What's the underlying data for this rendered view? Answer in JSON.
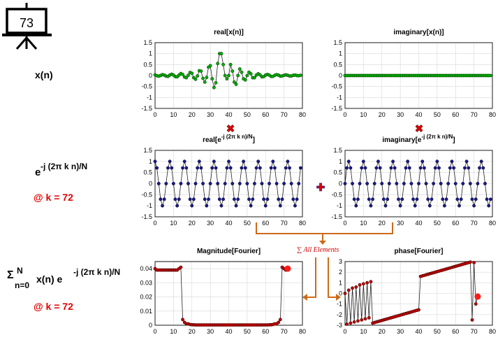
{
  "slide_badge": "73",
  "left_labels": {
    "xn": "x(n)",
    "exp_base": "e",
    "exp_sup": "-j (2π k n)/N",
    "k_label_1": "@ k = 72",
    "sum_sigma": "Σ",
    "sum_sup": "N",
    "sum_sub": "n=0",
    "sum_mid": "x(n) e",
    "sum_exp": "-j (2π k n)/N",
    "k_label_2": "@ k = 72"
  },
  "operators": {
    "multiply_1": "✖",
    "multiply_2": "✖",
    "plus": "✚",
    "sum_text": "∑ All Elements"
  },
  "colors": {
    "green_marker": "#00b000",
    "blue_marker": "#1a1a8c",
    "red_marker": "#c00000",
    "accent_red": "#e00000",
    "arrow_orange": "#cc6a1a",
    "grid": "#d8d8d8"
  },
  "chart_data": [
    {
      "id": "real_x",
      "type": "line",
      "title": "real[x(n)]",
      "marker": "green",
      "x": [
        0,
        1,
        2,
        3,
        4,
        5,
        6,
        7,
        8,
        9,
        10,
        11,
        12,
        13,
        14,
        15,
        16,
        17,
        18,
        19,
        20,
        21,
        22,
        23,
        24,
        25,
        26,
        27,
        28,
        29,
        30,
        31,
        32,
        33,
        34,
        35,
        36,
        37,
        38,
        39,
        40,
        41,
        42,
        43,
        44,
        45,
        46,
        47,
        48,
        49,
        50,
        51,
        52,
        53,
        54,
        55,
        56,
        57,
        58,
        59,
        60,
        61,
        62,
        63,
        64,
        65,
        66,
        67,
        68,
        69,
        70,
        71,
        72,
        73,
        74,
        75,
        76,
        77,
        78,
        79
      ],
      "y": [
        0.03,
        -0.01,
        -0.03,
        0.0,
        0.04,
        0.02,
        -0.03,
        -0.04,
        0.02,
        0.06,
        0.02,
        -0.05,
        -0.06,
        0.02,
        0.09,
        0.05,
        -0.07,
        -0.1,
        0.01,
        0.14,
        0.1,
        -0.1,
        -0.17,
        -0.02,
        0.22,
        0.2,
        -0.13,
        -0.3,
        -0.09,
        0.38,
        0.45,
        -0.15,
        -0.55,
        -0.33,
        0.55,
        1.0,
        1.0,
        0.5,
        0.0,
        -0.15,
        0.0,
        0.5,
        0.2,
        -0.3,
        -0.4,
        0.0,
        0.3,
        0.15,
        -0.15,
        -0.2,
        0.0,
        0.15,
        0.08,
        -0.1,
        -0.1,
        0.02,
        0.08,
        0.03,
        -0.06,
        -0.05,
        0.02,
        0.05,
        0.02,
        -0.04,
        -0.04,
        0.01,
        0.04,
        0.02,
        -0.03,
        -0.02,
        0.01,
        0.03,
        0.01,
        -0.02,
        -0.02,
        0.01,
        0.02,
        0.0,
        -0.01,
        0.01
      ],
      "xlim": [
        0,
        80
      ],
      "ylim": [
        -1.5,
        1.5
      ],
      "xticks": [
        0,
        10,
        20,
        30,
        40,
        50,
        60,
        70,
        80
      ],
      "yticks": [
        -1.5,
        -1,
        -0.5,
        0,
        0.5,
        1,
        1.5
      ]
    },
    {
      "id": "imag_x",
      "type": "line",
      "title": "imaginary[x(n)]",
      "marker": "green",
      "x": [
        0,
        1,
        2,
        3,
        4,
        5,
        6,
        7,
        8,
        9,
        10,
        11,
        12,
        13,
        14,
        15,
        16,
        17,
        18,
        19,
        20,
        21,
        22,
        23,
        24,
        25,
        26,
        27,
        28,
        29,
        30,
        31,
        32,
        33,
        34,
        35,
        36,
        37,
        38,
        39,
        40,
        41,
        42,
        43,
        44,
        45,
        46,
        47,
        48,
        49,
        50,
        51,
        52,
        53,
        54,
        55,
        56,
        57,
        58,
        59,
        60,
        61,
        62,
        63,
        64,
        65,
        66,
        67,
        68,
        69,
        70,
        71,
        72,
        73,
        74,
        75,
        76,
        77,
        78,
        79
      ],
      "y": [
        0,
        0,
        0,
        0,
        0,
        0,
        0,
        0,
        0,
        0,
        0,
        0,
        0,
        0,
        0,
        0,
        0,
        0,
        0,
        0,
        0,
        0,
        0,
        0,
        0,
        0,
        0,
        0,
        0,
        0,
        0,
        0,
        0,
        0,
        0,
        0,
        0,
        0,
        0,
        0,
        0,
        0,
        0,
        0,
        0,
        0,
        0,
        0,
        0,
        0,
        0,
        0,
        0,
        0,
        0,
        0,
        0,
        0,
        0,
        0,
        0,
        0,
        0,
        0,
        0,
        0,
        0,
        0,
        0,
        0,
        0,
        0,
        0,
        0,
        0,
        0,
        0,
        0,
        0,
        0
      ],
      "xlim": [
        0,
        80
      ],
      "ylim": [
        -1.5,
        1.5
      ],
      "xticks": [
        0,
        10,
        20,
        30,
        40,
        50,
        60,
        70,
        80
      ],
      "yticks": [
        -1.5,
        -1,
        -0.5,
        0,
        0.5,
        1,
        1.5
      ]
    },
    {
      "id": "real_exp",
      "type": "line",
      "title_main": "real[e",
      "title_sup": "-j (2π k n)/N",
      "title_end": "]",
      "marker": "blue",
      "x": [
        0,
        1,
        2,
        3,
        4,
        5,
        6,
        7,
        8,
        9,
        10,
        11,
        12,
        13,
        14,
        15,
        16,
        17,
        18,
        19,
        20,
        21,
        22,
        23,
        24,
        25,
        26,
        27,
        28,
        29,
        30,
        31,
        32,
        33,
        34,
        35,
        36,
        37,
        38,
        39,
        40,
        41,
        42,
        43,
        44,
        45,
        46,
        47,
        48,
        49,
        50,
        51,
        52,
        53,
        54,
        55,
        56,
        57,
        58,
        59,
        60,
        61,
        62,
        63,
        64,
        65,
        66,
        67,
        68,
        69,
        70,
        71,
        72,
        73,
        74,
        75,
        76,
        77,
        78,
        79
      ],
      "y": [
        1,
        0.707,
        0,
        -0.707,
        -1,
        -0.707,
        0,
        0.707,
        1,
        0.707,
        0,
        -0.707,
        -1,
        -0.707,
        0,
        0.707,
        1,
        0.707,
        0,
        -0.707,
        -1,
        -0.707,
        0,
        0.707,
        1,
        0.707,
        0,
        -0.707,
        -1,
        -0.707,
        0,
        0.707,
        1,
        0.707,
        0,
        -0.707,
        -1,
        -0.707,
        0,
        0.707,
        1,
        0.707,
        0,
        -0.707,
        -1,
        -0.707,
        0,
        0.707,
        1,
        0.707,
        0,
        -0.707,
        -1,
        -0.707,
        0,
        0.707,
        1,
        0.707,
        0,
        -0.707,
        -1,
        -0.707,
        0,
        0.707,
        1,
        0.707,
        0,
        -0.707,
        -1,
        -0.707,
        0,
        0.707,
        1,
        0.707,
        0,
        -0.707,
        -1,
        -0.707,
        0,
        0.707
      ],
      "xlim": [
        0,
        80
      ],
      "ylim": [
        -1.5,
        1.5
      ],
      "xticks": [
        0,
        10,
        20,
        30,
        40,
        50,
        60,
        70,
        80
      ],
      "yticks": [
        -1.5,
        -1,
        -0.5,
        0,
        0.5,
        1,
        1.5
      ]
    },
    {
      "id": "imag_exp",
      "type": "line",
      "title_main": "imaginary[e",
      "title_sup": "-j (2π k n)/N",
      "title_end": "]",
      "marker": "blue",
      "x": [
        0,
        1,
        2,
        3,
        4,
        5,
        6,
        7,
        8,
        9,
        10,
        11,
        12,
        13,
        14,
        15,
        16,
        17,
        18,
        19,
        20,
        21,
        22,
        23,
        24,
        25,
        26,
        27,
        28,
        29,
        30,
        31,
        32,
        33,
        34,
        35,
        36,
        37,
        38,
        39,
        40,
        41,
        42,
        43,
        44,
        45,
        46,
        47,
        48,
        49,
        50,
        51,
        52,
        53,
        54,
        55,
        56,
        57,
        58,
        59,
        60,
        61,
        62,
        63,
        64,
        65,
        66,
        67,
        68,
        69,
        70,
        71,
        72,
        73,
        74,
        75,
        76,
        77,
        78,
        79
      ],
      "y": [
        0,
        0.707,
        1,
        0.707,
        0,
        -0.707,
        -1,
        -0.707,
        0,
        0.707,
        1,
        0.707,
        0,
        -0.707,
        -1,
        -0.707,
        0,
        0.707,
        1,
        0.707,
        0,
        -0.707,
        -1,
        -0.707,
        0,
        0.707,
        1,
        0.707,
        0,
        -0.707,
        -1,
        -0.707,
        0,
        0.707,
        1,
        0.707,
        0,
        -0.707,
        -1,
        -0.707,
        0,
        0.707,
        1,
        0.707,
        0,
        -0.707,
        -1,
        -0.707,
        0,
        0.707,
        1,
        0.707,
        0,
        -0.707,
        -1,
        -0.707,
        0,
        0.707,
        1,
        0.707,
        0,
        -0.707,
        -1,
        -0.707,
        0,
        0.707,
        1,
        0.707,
        0,
        -0.707,
        -1,
        -0.707,
        0,
        0.707,
        1,
        0.707,
        0,
        -0.707,
        -1,
        -0.707
      ],
      "xlim": [
        0,
        80
      ],
      "ylim": [
        -1.5,
        1.5
      ],
      "xticks": [
        0,
        10,
        20,
        30,
        40,
        50,
        60,
        70,
        80
      ],
      "yticks": [
        -1.5,
        -1,
        -0.5,
        0,
        0.5,
        1,
        1.5
      ]
    },
    {
      "id": "magnitude",
      "type": "line",
      "title": "Magnitude[Fourier]",
      "marker": "red",
      "highlight_index": 72,
      "x": [
        0,
        1,
        2,
        3,
        4,
        5,
        6,
        7,
        8,
        9,
        10,
        11,
        12,
        13,
        14,
        15,
        16,
        17,
        18,
        19,
        20,
        21,
        22,
        23,
        24,
        25,
        26,
        27,
        28,
        29,
        30,
        31,
        32,
        33,
        34,
        35,
        36,
        37,
        38,
        39,
        40,
        41,
        42,
        43,
        44,
        45,
        46,
        47,
        48,
        49,
        50,
        51,
        52,
        53,
        54,
        55,
        56,
        57,
        58,
        59,
        60,
        61,
        62,
        63,
        64,
        65,
        66,
        67,
        68,
        69,
        70,
        71,
        72
      ],
      "y": [
        0.04,
        0.039,
        0.039,
        0.039,
        0.039,
        0.039,
        0.039,
        0.039,
        0.039,
        0.039,
        0.039,
        0.039,
        0.039,
        0.04,
        0.041,
        0.004,
        0.002,
        0.001,
        0.001,
        0.0005,
        0.0003,
        0.0003,
        0.0002,
        0.0002,
        0.0002,
        0.0002,
        0.0002,
        0.0002,
        0.0002,
        0.0002,
        0.0002,
        0.0002,
        0.0002,
        0.0002,
        0.0002,
        0.0002,
        0.0002,
        0.0002,
        0.0002,
        0.0002,
        0.0002,
        0.0002,
        0.0002,
        0.0002,
        0.0002,
        0.0002,
        0.0002,
        0.0002,
        0.0002,
        0.0002,
        0.0002,
        0.0002,
        0.0002,
        0.0002,
        0.0002,
        0.0002,
        0.0002,
        0.0002,
        0.0002,
        0.0002,
        0.0002,
        0.0002,
        0.0003,
        0.0003,
        0.0005,
        0.001,
        0.001,
        0.002,
        0.004,
        0.041,
        0.04,
        0.039,
        0.04
      ],
      "xlim": [
        0,
        80
      ],
      "ylim": [
        0,
        0.045
      ],
      "xticks": [
        0,
        10,
        20,
        30,
        40,
        50,
        60,
        70,
        80
      ],
      "yticks": [
        0,
        0.01,
        0.02,
        0.03,
        0.04
      ]
    },
    {
      "id": "phase",
      "type": "line",
      "title": "phase[Fourier]",
      "marker": "red",
      "highlight_index": 72,
      "x": [
        0,
        1,
        2,
        3,
        4,
        5,
        6,
        7,
        8,
        9,
        10,
        11,
        12,
        13,
        14,
        15,
        16,
        17,
        18,
        19,
        20,
        21,
        22,
        23,
        24,
        25,
        26,
        27,
        28,
        29,
        30,
        31,
        32,
        33,
        34,
        35,
        36,
        37,
        38,
        39,
        40,
        41,
        42,
        43,
        44,
        45,
        46,
        47,
        48,
        49,
        50,
        51,
        52,
        53,
        54,
        55,
        56,
        57,
        58,
        59,
        60,
        61,
        62,
        63,
        64,
        65,
        66,
        67,
        68,
        69,
        70,
        71,
        72
      ],
      "y": [
        0,
        -2.9,
        0.3,
        -2.8,
        0.5,
        -2.7,
        0.6,
        -2.6,
        0.8,
        -2.5,
        0.9,
        -2.4,
        1.0,
        -2.3,
        1.1,
        -2.8,
        -2.75,
        -2.7,
        -2.65,
        -2.6,
        -2.55,
        -2.5,
        -2.45,
        -2.4,
        -2.35,
        -2.3,
        -2.25,
        -2.2,
        -2.15,
        -2.1,
        -2.05,
        -2.0,
        -1.95,
        -1.9,
        -1.85,
        -1.8,
        -1.75,
        -1.7,
        -1.65,
        -1.6,
        -1.55,
        1.6,
        1.65,
        1.7,
        1.75,
        1.8,
        1.85,
        1.9,
        1.95,
        2.0,
        2.05,
        2.1,
        2.15,
        2.2,
        2.25,
        2.3,
        2.35,
        2.4,
        2.45,
        2.5,
        2.55,
        2.6,
        2.65,
        2.7,
        2.75,
        2.8,
        2.85,
        2.9,
        2.95,
        -2.5,
        2.9,
        -1.0,
        -0.3
      ],
      "xlim": [
        0,
        80
      ],
      "ylim": [
        -3,
        3
      ],
      "xticks": [
        0,
        10,
        20,
        30,
        40,
        50,
        60,
        70,
        80
      ],
      "yticks": [
        -3,
        -2,
        -1,
        0,
        1,
        2,
        3
      ]
    }
  ]
}
